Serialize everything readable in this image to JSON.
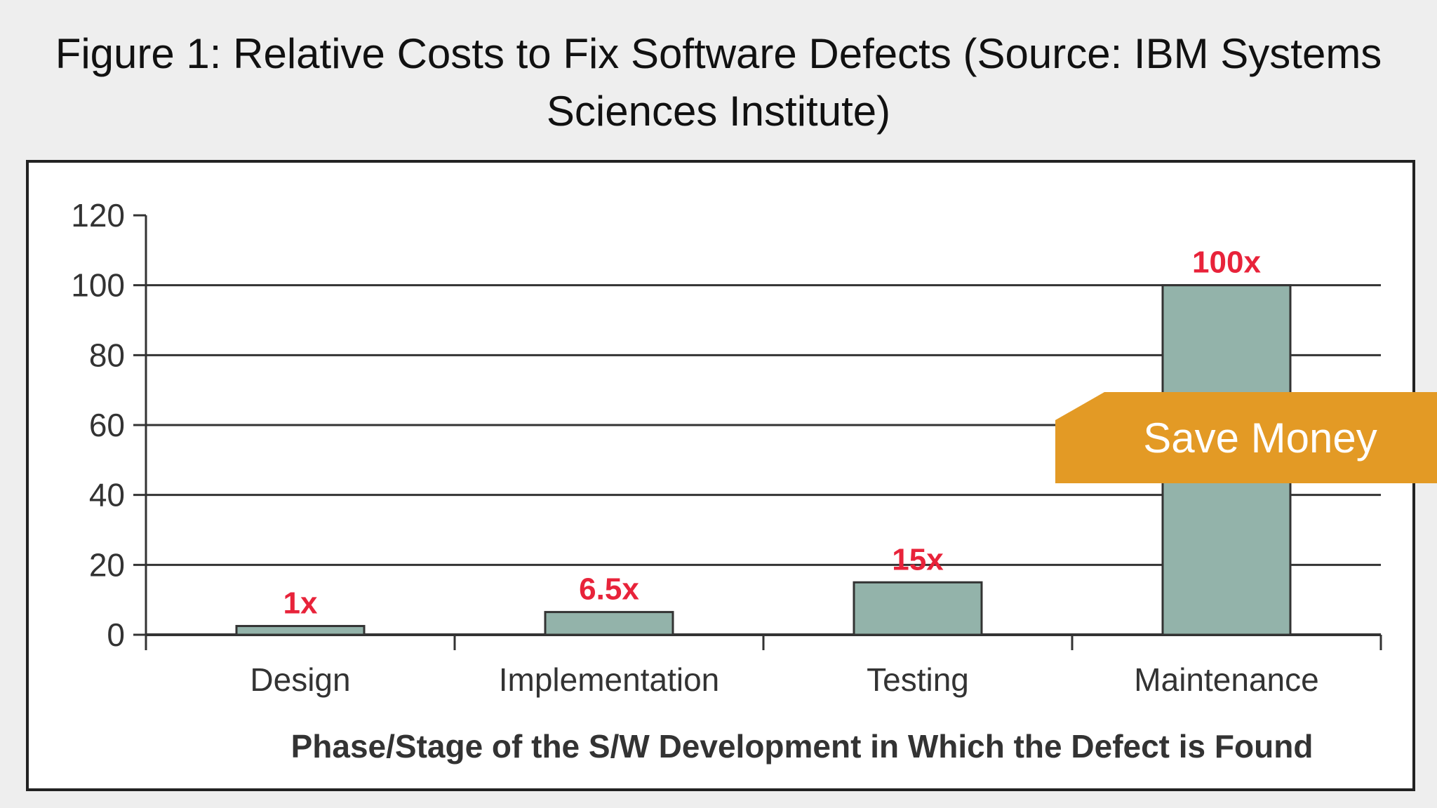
{
  "figure": {
    "title_line1": "Figure 1: Relative Costs to Fix Software Defects (Source: IBM Systems",
    "title_line2": "Sciences Institute)"
  },
  "badge": {
    "label": "Save Money",
    "color": "#e39a25"
  },
  "chart_data": {
    "type": "bar",
    "title": "Figure 1: Relative Costs to Fix Software Defects (Source: IBM Systems Sciences Institute)",
    "categories": [
      "Design",
      "Implementation",
      "Testing",
      "Maintenance"
    ],
    "values": [
      1,
      6.5,
      15,
      100
    ],
    "data_labels": [
      "1x",
      "6.5x",
      "15x",
      "100x"
    ],
    "xlabel": "Phase/Stage of the S/W Development in Which the Defect is Found",
    "ylabel": "",
    "ylim": [
      0,
      120
    ],
    "yticks": [
      0,
      20,
      40,
      60,
      80,
      100,
      120
    ],
    "grid": true,
    "bar_color": "#93b3aa",
    "label_color": "#e8233a"
  }
}
